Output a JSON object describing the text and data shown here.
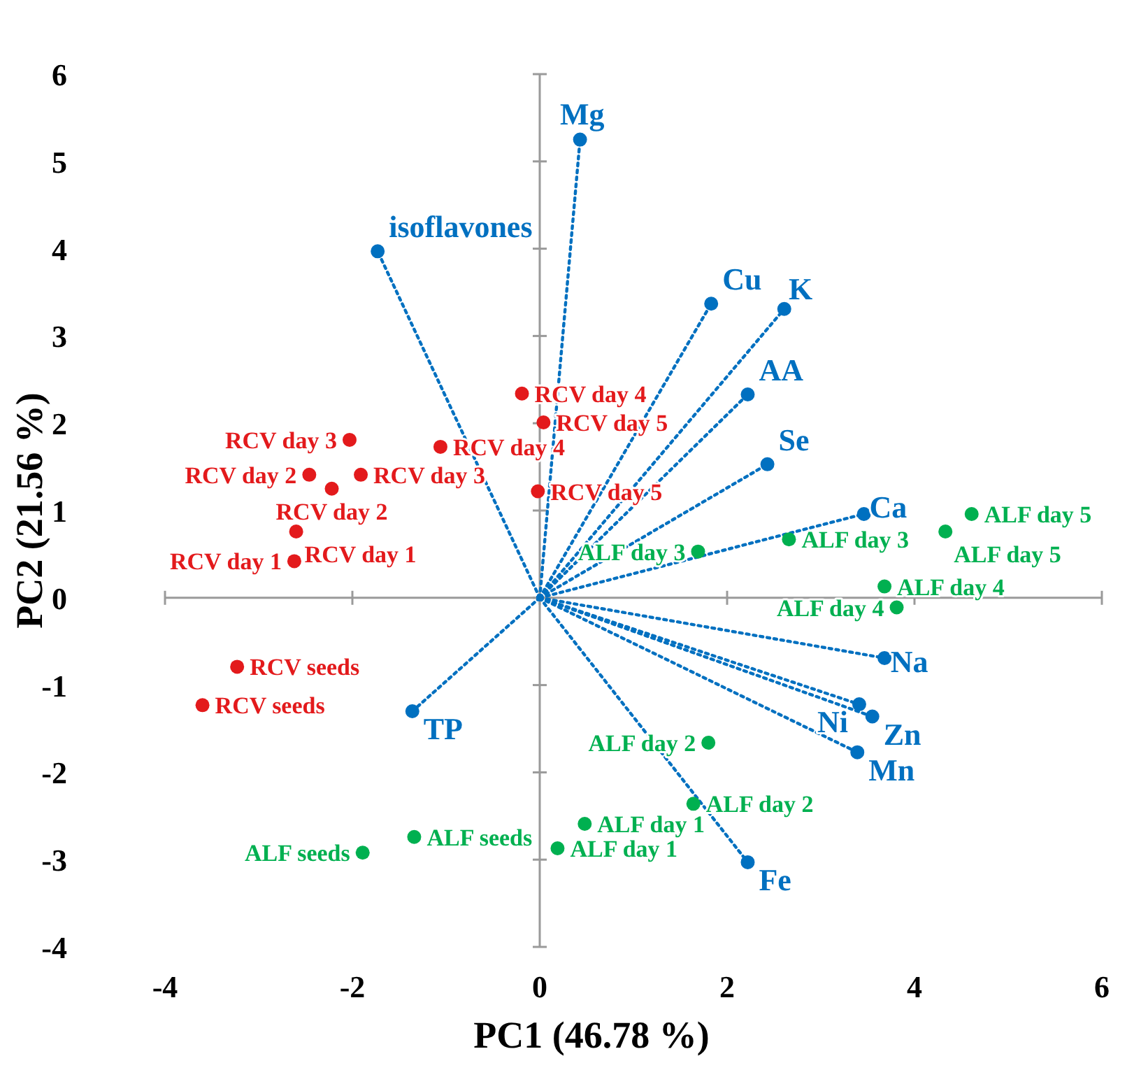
{
  "chart_data": {
    "type": "scatter",
    "xlabel": "PC1 (46.78 %)",
    "ylabel": "PC2 (21.56 %)",
    "xlim": [
      -4,
      6
    ],
    "ylim": [
      -4,
      6
    ],
    "xticks": [
      -4,
      -2,
      0,
      2,
      4,
      6
    ],
    "yticks": [
      -4,
      -3,
      -2,
      -1,
      0,
      1,
      2,
      3,
      4,
      5,
      6
    ],
    "marker": "circle",
    "series": [
      {
        "type": "line",
        "line_style": "dotted",
        "name": "isoflavones",
        "color": "#0070c0",
        "x": [
          0,
          -1.73
        ],
        "values": [
          0,
          3.97
        ]
      },
      {
        "type": "line",
        "line_style": "dotted",
        "name": "Mg",
        "color": "#0070c0",
        "x": [
          0,
          0.43
        ],
        "values": [
          0,
          5.25
        ]
      },
      {
        "type": "line",
        "line_style": "dotted",
        "name": "Cu",
        "color": "#0070c0",
        "x": [
          0,
          1.83
        ],
        "values": [
          0,
          3.37
        ]
      },
      {
        "type": "line",
        "line_style": "dotted",
        "name": "K",
        "color": "#0070c0",
        "x": [
          0,
          2.61
        ],
        "values": [
          0,
          3.31
        ]
      },
      {
        "type": "line",
        "line_style": "dotted",
        "name": "AA",
        "color": "#0070c0",
        "x": [
          0,
          2.22
        ],
        "values": [
          0,
          2.33
        ]
      },
      {
        "type": "line",
        "line_style": "dotted",
        "name": "Se",
        "color": "#0070c0",
        "x": [
          0,
          2.43
        ],
        "values": [
          0,
          1.53
        ]
      },
      {
        "type": "line",
        "line_style": "dotted",
        "name": "Ca",
        "color": "#0070c0",
        "x": [
          0,
          3.46
        ],
        "values": [
          0,
          0.96
        ]
      },
      {
        "type": "line",
        "line_style": "dotted",
        "name": "Na",
        "color": "#0070c0",
        "x": [
          0,
          3.68
        ],
        "values": [
          0,
          -0.69
        ]
      },
      {
        "type": "line",
        "line_style": "dotted",
        "name": "Ni",
        "color": "#0070c0",
        "x": [
          0,
          3.41
        ],
        "values": [
          0,
          -1.22
        ]
      },
      {
        "type": "line",
        "line_style": "dotted",
        "name": "Zn",
        "color": "#0070c0",
        "x": [
          0,
          3.55
        ],
        "values": [
          0,
          -1.36
        ]
      },
      {
        "type": "line",
        "line_style": "dotted",
        "name": "Mn",
        "color": "#0070c0",
        "x": [
          0,
          3.39
        ],
        "values": [
          0,
          -1.77
        ]
      },
      {
        "type": "line",
        "line_style": "dotted",
        "name": "Fe",
        "color": "#0070c0",
        "x": [
          0,
          2.22
        ],
        "values": [
          0,
          -3.03
        ]
      },
      {
        "type": "line",
        "line_style": "dotted",
        "name": "TP",
        "color": "#0070c0",
        "x": [
          0,
          -1.36
        ],
        "values": [
          0,
          -1.3
        ]
      },
      {
        "name": "RCV day 4",
        "color": "#e31a1c",
        "x": [
          -0.19
        ],
        "values": [
          2.34
        ]
      },
      {
        "name": "RCV day 5",
        "color": "#e31a1c",
        "x": [
          0.04
        ],
        "values": [
          2.01
        ]
      },
      {
        "name": "RCV day 4",
        "color": "#e31a1c",
        "x": [
          -1.06
        ],
        "values": [
          1.73
        ]
      },
      {
        "name": "RCV day 5",
        "color": "#e31a1c",
        "x": [
          -0.02
        ],
        "values": [
          1.22
        ]
      },
      {
        "name": "RCV day 3",
        "color": "#e31a1c",
        "x": [
          -2.03
        ],
        "values": [
          1.81
        ]
      },
      {
        "name": "RCV day 3",
        "color": "#e31a1c",
        "x": [
          -1.91
        ],
        "values": [
          1.41
        ]
      },
      {
        "name": "RCV day 2",
        "color": "#e31a1c",
        "x": [
          -2.46
        ],
        "values": [
          1.41
        ]
      },
      {
        "name": "RCV day 2",
        "color": "#e31a1c",
        "x": [
          -2.22
        ],
        "values": [
          1.25
        ]
      },
      {
        "name": "RCV day 1",
        "color": "#e31a1c",
        "x": [
          -2.6
        ],
        "values": [
          0.76
        ]
      },
      {
        "name": "RCV day 1",
        "color": "#e31a1c",
        "x": [
          -2.62
        ],
        "values": [
          0.42
        ]
      },
      {
        "name": "RCV seeds",
        "color": "#e31a1c",
        "x": [
          -3.23
        ],
        "values": [
          -0.79
        ]
      },
      {
        "name": "RCV seeds",
        "color": "#e31a1c",
        "x": [
          -3.6
        ],
        "values": [
          -1.23
        ]
      },
      {
        "name": "ALF seeds",
        "color": "#00b050",
        "x": [
          -1.34
        ],
        "values": [
          -2.74
        ]
      },
      {
        "name": "ALF seeds",
        "color": "#00b050",
        "x": [
          -1.89
        ],
        "values": [
          -2.92
        ]
      },
      {
        "name": "ALF day 1",
        "color": "#00b050",
        "x": [
          0.48
        ],
        "values": [
          -2.59
        ]
      },
      {
        "name": "ALF day 1",
        "color": "#00b050",
        "x": [
          0.19
        ],
        "values": [
          -2.87
        ]
      },
      {
        "name": "ALF day 2",
        "color": "#00b050",
        "x": [
          1.8
        ],
        "values": [
          -1.66
        ]
      },
      {
        "name": "ALF day 2",
        "color": "#00b050",
        "x": [
          1.64
        ],
        "values": [
          -2.36
        ]
      },
      {
        "name": "ALF day 3",
        "color": "#00b050",
        "x": [
          1.69
        ],
        "values": [
          0.53
        ]
      },
      {
        "name": "ALF day 3",
        "color": "#00b050",
        "x": [
          2.66
        ],
        "values": [
          0.67
        ]
      },
      {
        "name": "ALF day 4",
        "color": "#00b050",
        "x": [
          3.68
        ],
        "values": [
          0.13
        ]
      },
      {
        "name": "ALF day 4",
        "color": "#00b050",
        "x": [
          3.81
        ],
        "values": [
          -0.11
        ]
      },
      {
        "name": "ALF day 5",
        "color": "#00b050",
        "x": [
          4.61
        ],
        "values": [
          0.96
        ]
      },
      {
        "name": "ALF day 5",
        "color": "#00b050",
        "x": [
          4.33
        ],
        "values": [
          0.76
        ]
      }
    ]
  }
}
